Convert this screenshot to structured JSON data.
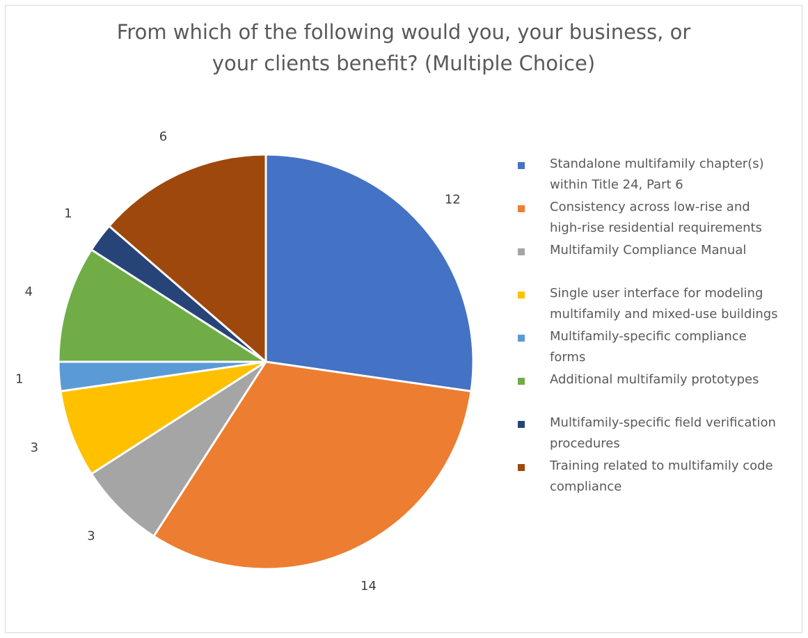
{
  "chart_data": {
    "type": "pie",
    "title_lines": [
      "From which of the following would you, your business, or",
      "your clients benefit? (Multiple Choice)"
    ],
    "categories": [
      "Standalone multifamily chapter(s) within Title 24, Part 6",
      "Consistency across low-rise and high-rise residential requirements",
      "Multifamily Compliance Manual",
      "Single user interface for modeling multifamily and mixed-use buildings",
      "Multifamily-specific compliance forms",
      "Additional multifamily prototypes",
      "Multifamily-specific field verification procedures",
      "Training related to multifamily code compliance"
    ],
    "legend_lines": [
      [
        "Standalone multifamily chapter(s)",
        "within Title 24, Part 6"
      ],
      [
        "Consistency across low-rise and",
        "high-rise residential requirements"
      ],
      [
        "Multifamily Compliance Manual"
      ],
      [
        "Single user interface for modeling",
        "multifamily and mixed-use buildings"
      ],
      [
        "Multifamily-specific compliance",
        "forms"
      ],
      [
        "Additional multifamily prototypes"
      ],
      [
        "Multifamily-specific field verification",
        "procedures"
      ],
      [
        "Training related to multifamily code",
        "compliance"
      ]
    ],
    "values": [
      12,
      14,
      3,
      3,
      1,
      4,
      1,
      6
    ],
    "colors": [
      "#4472c4",
      "#ed7d31",
      "#a5a5a5",
      "#ffc000",
      "#5b9bd5",
      "#70ad47",
      "#264478",
      "#9e480e"
    ],
    "start_angle_deg": 0,
    "direction": "clockwise",
    "legend_position": "right",
    "data_labels": "outside-end"
  }
}
